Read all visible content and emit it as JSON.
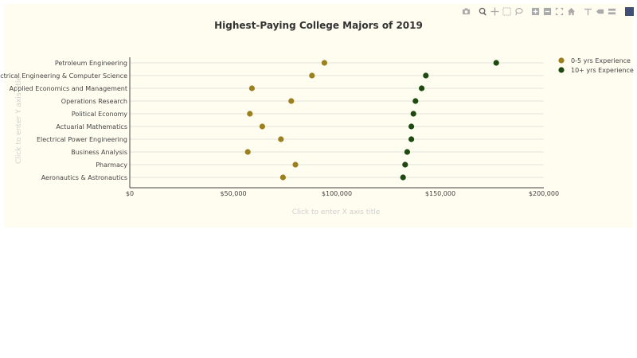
{
  "colors": {
    "panel_bg": "#fffdf0",
    "series_0_5": "#9c8020",
    "series_10_plus": "#1e4a12",
    "grid": "#d9d9d9",
    "axis_line": "#444444"
  },
  "modebar": {
    "icons": [
      "camera-icon",
      "zoom-icon",
      "pan-icon",
      "box-select-icon",
      "lasso-icon",
      "zoom-in-icon",
      "zoom-out-icon",
      "autoscale-icon",
      "reset-axes-icon",
      "spike-lines-icon",
      "hover-closest-icon",
      "hover-compare-icon",
      "plotly-logo-icon"
    ]
  },
  "x_axis_placeholder": "Click to enter X axis title",
  "y_axis_placeholder": "Click to enter Y axis title",
  "chart_data": {
    "type": "scatter",
    "title": "Highest-Paying College Majors of 2019",
    "categories": [
      "Petroleum Engineering",
      "Electrical Engineering & Computer Science",
      "Applied Economics and Management",
      "Operations Research",
      "Political Economy",
      "Actuarial Mathematics",
      "Electrical Power Engineering",
      "Business Analysis",
      "Pharmacy",
      "Aeronautics & Astronautics"
    ],
    "series": [
      {
        "name": "0-5 yrs Experience",
        "values": [
          94000,
          88000,
          59000,
          78000,
          58000,
          64000,
          73000,
          57000,
          80000,
          74000
        ]
      },
      {
        "name": "10+ yrs Experience",
        "values": [
          177000,
          143000,
          141000,
          138000,
          137000,
          136000,
          136000,
          134000,
          133000,
          132000
        ]
      }
    ],
    "xlim": [
      0,
      200000
    ],
    "xticks": [
      {
        "value": 0,
        "label": "$0"
      },
      {
        "value": 50000,
        "label": "$50,000"
      },
      {
        "value": 100000,
        "label": "$100,000"
      },
      {
        "value": 150000,
        "label": "$150,000"
      },
      {
        "value": 200000,
        "label": "$200,000"
      }
    ],
    "xlabel": "",
    "ylabel": "",
    "grid": true,
    "legend_position": "top-right"
  }
}
